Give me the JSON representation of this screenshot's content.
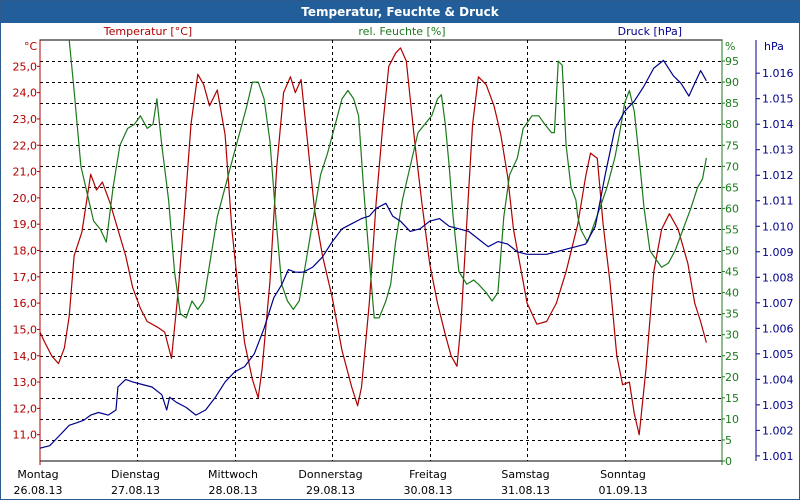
{
  "window": {
    "title": "Temperatur, Feuchte & Druck"
  },
  "colors": {
    "temperature": "#b00000",
    "humidity": "#1c7a1c",
    "pressure": "#00008b",
    "grid": "#000000",
    "titlebar": "#225e99"
  },
  "chart_data": {
    "type": "line",
    "title": "Temperatur, Feuchte & Druck",
    "x_range": [
      0,
      7
    ],
    "x_unit": "days since Montag 26.08.13 00:00",
    "x_labels": [
      {
        "day": "Montag",
        "date": "26.08.13"
      },
      {
        "day": "Dienstag",
        "date": "27.08.13"
      },
      {
        "day": "Mittwoch",
        "date": "28.08.13"
      },
      {
        "day": "Donnerstag",
        "date": "29.08.13"
      },
      {
        "day": "Freitag",
        "date": "30.08.13"
      },
      {
        "day": "Samstag",
        "date": "31.08.13"
      },
      {
        "day": "Sonntag",
        "date": "01.09.13"
      }
    ],
    "axes": {
      "temperature": {
        "label": "Temperatur [°C]",
        "unit": "°C",
        "range": [
          10.0,
          26.0
        ],
        "ticks": [
          "11,0",
          "12,0",
          "13,0",
          "14,0",
          "15,0",
          "16,0",
          "17,0",
          "18,0",
          "19,0",
          "20,0",
          "21,0",
          "22,0",
          "23,0",
          "24,0",
          "25,0"
        ]
      },
      "humidity": {
        "label": "rel. Feuchte [%]",
        "unit": "%",
        "range": [
          0,
          100
        ],
        "ticks": [
          "0",
          "5",
          "10",
          "15",
          "20",
          "25",
          "30",
          "35",
          "40",
          "45",
          "50",
          "55",
          "60",
          "65",
          "70",
          "75",
          "80",
          "85",
          "90",
          "95"
        ]
      },
      "pressure": {
        "label": "Druck [hPa]",
        "unit": "hPa",
        "range": [
          1.0008,
          1.0173
        ],
        "ticks": [
          "1.001",
          "1.002",
          "1.003",
          "1.004",
          "1.005",
          "1.006",
          "1.007",
          "1.008",
          "1.009",
          "1.010",
          "1.011",
          "1.012",
          "1.013",
          "1.014",
          "1.015",
          "1.016"
        ]
      }
    },
    "series": [
      {
        "name": "Temperatur",
        "axis": "temperature",
        "points": [
          [
            0,
            14.9
          ],
          [
            0.05,
            14.5
          ],
          [
            0.12,
            14.0
          ],
          [
            0.19,
            13.7
          ],
          [
            0.25,
            14.3
          ],
          [
            0.3,
            15.5
          ],
          [
            0.35,
            17.8
          ],
          [
            0.43,
            18.7
          ],
          [
            0.52,
            20.9
          ],
          [
            0.58,
            20.3
          ],
          [
            0.64,
            20.6
          ],
          [
            0.72,
            19.8
          ],
          [
            0.8,
            18.8
          ],
          [
            0.88,
            17.8
          ],
          [
            0.95,
            16.6
          ],
          [
            1.03,
            15.8
          ],
          [
            1.1,
            15.3
          ],
          [
            1.2,
            15.1
          ],
          [
            1.28,
            14.9
          ],
          [
            1.35,
            13.9
          ],
          [
            1.42,
            16.5
          ],
          [
            1.48,
            19.3
          ],
          [
            1.55,
            22.8
          ],
          [
            1.62,
            24.7
          ],
          [
            1.68,
            24.3
          ],
          [
            1.74,
            23.5
          ],
          [
            1.82,
            24.1
          ],
          [
            1.9,
            22.4
          ],
          [
            1.97,
            18.8
          ],
          [
            2.04,
            16.3
          ],
          [
            2.1,
            14.5
          ],
          [
            2.18,
            13.1
          ],
          [
            2.24,
            12.4
          ],
          [
            2.28,
            13.5
          ],
          [
            2.36,
            16.8
          ],
          [
            2.43,
            21.2
          ],
          [
            2.5,
            24.0
          ],
          [
            2.57,
            24.6
          ],
          [
            2.62,
            24.0
          ],
          [
            2.68,
            24.5
          ],
          [
            2.75,
            22.0
          ],
          [
            2.82,
            19.5
          ],
          [
            2.9,
            17.8
          ],
          [
            3.0,
            16.2
          ],
          [
            3.1,
            14.2
          ],
          [
            3.2,
            12.8
          ],
          [
            3.26,
            12.1
          ],
          [
            3.3,
            12.8
          ],
          [
            3.38,
            16.0
          ],
          [
            3.45,
            19.8
          ],
          [
            3.52,
            22.8
          ],
          [
            3.58,
            25.0
          ],
          [
            3.65,
            25.5
          ],
          [
            3.7,
            25.7
          ],
          [
            3.76,
            25.2
          ],
          [
            3.85,
            22.0
          ],
          [
            3.92,
            19.8
          ],
          [
            4.0,
            17.5
          ],
          [
            4.08,
            16.0
          ],
          [
            4.16,
            14.8
          ],
          [
            4.22,
            14.0
          ],
          [
            4.28,
            13.6
          ],
          [
            4.32,
            15.2
          ],
          [
            4.38,
            19.0
          ],
          [
            4.44,
            22.8
          ],
          [
            4.5,
            24.6
          ],
          [
            4.58,
            24.3
          ],
          [
            4.66,
            23.5
          ],
          [
            4.73,
            22.4
          ],
          [
            4.8,
            20.8
          ],
          [
            4.86,
            18.8
          ],
          [
            4.94,
            17.2
          ],
          [
            5.0,
            16.0
          ],
          [
            5.1,
            15.2
          ],
          [
            5.2,
            15.3
          ],
          [
            5.3,
            16.0
          ],
          [
            5.4,
            17.2
          ],
          [
            5.52,
            19.0
          ],
          [
            5.6,
            20.8
          ],
          [
            5.65,
            21.7
          ],
          [
            5.72,
            21.5
          ],
          [
            5.78,
            19.0
          ],
          [
            5.85,
            16.8
          ],
          [
            5.92,
            14.0
          ],
          [
            5.98,
            12.9
          ],
          [
            6.05,
            13.0
          ],
          [
            6.1,
            11.8
          ],
          [
            6.15,
            11.0
          ],
          [
            6.22,
            13.5
          ],
          [
            6.3,
            17.2
          ],
          [
            6.38,
            18.8
          ],
          [
            6.46,
            19.4
          ],
          [
            6.55,
            18.8
          ],
          [
            6.65,
            17.5
          ],
          [
            6.72,
            16.0
          ],
          [
            6.78,
            15.3
          ],
          [
            6.84,
            14.5
          ]
        ]
      },
      {
        "name": "rel. Feuchte",
        "axis": "humidity",
        "points": [
          [
            0.3,
            100
          ],
          [
            0.35,
            88
          ],
          [
            0.42,
            70
          ],
          [
            0.5,
            62
          ],
          [
            0.55,
            57
          ],
          [
            0.62,
            55
          ],
          [
            0.68,
            52
          ],
          [
            0.75,
            65
          ],
          [
            0.82,
            75
          ],
          [
            0.9,
            79
          ],
          [
            0.97,
            80
          ],
          [
            1.03,
            82
          ],
          [
            1.1,
            79
          ],
          [
            1.16,
            80
          ],
          [
            1.2,
            86
          ],
          [
            1.25,
            75
          ],
          [
            1.32,
            62
          ],
          [
            1.38,
            45
          ],
          [
            1.44,
            35
          ],
          [
            1.5,
            34
          ],
          [
            1.56,
            38
          ],
          [
            1.62,
            36
          ],
          [
            1.68,
            38
          ],
          [
            1.75,
            48
          ],
          [
            1.82,
            58
          ],
          [
            1.9,
            65
          ],
          [
            1.98,
            72
          ],
          [
            2.05,
            78
          ],
          [
            2.12,
            84
          ],
          [
            2.18,
            90
          ],
          [
            2.24,
            90
          ],
          [
            2.3,
            86
          ],
          [
            2.36,
            76
          ],
          [
            2.42,
            58
          ],
          [
            2.48,
            42
          ],
          [
            2.54,
            38
          ],
          [
            2.6,
            36
          ],
          [
            2.66,
            38
          ],
          [
            2.72,
            46
          ],
          [
            2.8,
            57
          ],
          [
            2.88,
            68
          ],
          [
            2.95,
            73
          ],
          [
            3.02,
            79
          ],
          [
            3.1,
            86
          ],
          [
            3.16,
            88
          ],
          [
            3.22,
            86
          ],
          [
            3.27,
            82
          ],
          [
            3.32,
            65
          ],
          [
            3.38,
            48
          ],
          [
            3.43,
            34
          ],
          [
            3.48,
            34
          ],
          [
            3.55,
            38
          ],
          [
            3.6,
            42
          ],
          [
            3.65,
            52
          ],
          [
            3.72,
            62
          ],
          [
            3.8,
            70
          ],
          [
            3.88,
            78
          ],
          [
            3.95,
            80
          ],
          [
            4.02,
            82
          ],
          [
            4.08,
            86
          ],
          [
            4.12,
            87
          ],
          [
            4.16,
            80
          ],
          [
            4.2,
            70
          ],
          [
            4.24,
            58
          ],
          [
            4.3,
            45
          ],
          [
            4.38,
            42
          ],
          [
            4.45,
            43
          ],
          [
            4.5,
            42
          ],
          [
            4.58,
            40
          ],
          [
            4.64,
            38
          ],
          [
            4.7,
            40
          ],
          [
            4.76,
            58
          ],
          [
            4.82,
            68
          ],
          [
            4.9,
            72
          ],
          [
            4.96,
            79
          ],
          [
            5.05,
            82
          ],
          [
            5.12,
            82
          ],
          [
            5.18,
            80
          ],
          [
            5.25,
            78
          ],
          [
            5.28,
            78
          ],
          [
            5.32,
            95
          ],
          [
            5.36,
            94
          ],
          [
            5.4,
            75
          ],
          [
            5.45,
            65
          ],
          [
            5.5,
            62
          ],
          [
            5.52,
            58
          ],
          [
            5.55,
            55
          ],
          [
            5.62,
            52
          ],
          [
            5.7,
            57
          ],
          [
            5.76,
            61
          ],
          [
            5.82,
            65
          ],
          [
            5.9,
            72
          ],
          [
            5.95,
            78
          ],
          [
            6.0,
            85
          ],
          [
            6.05,
            88
          ],
          [
            6.1,
            83
          ],
          [
            6.15,
            72
          ],
          [
            6.2,
            60
          ],
          [
            6.26,
            50
          ],
          [
            6.32,
            48
          ],
          [
            6.38,
            46
          ],
          [
            6.45,
            47
          ],
          [
            6.52,
            50
          ],
          [
            6.6,
            55
          ],
          [
            6.68,
            60
          ],
          [
            6.75,
            65
          ],
          [
            6.8,
            67
          ],
          [
            6.84,
            72
          ]
        ]
      },
      {
        "name": "Druck",
        "axis": "pressure",
        "points": [
          [
            0,
            1.0013
          ],
          [
            0.1,
            1.0014
          ],
          [
            0.2,
            1.0018
          ],
          [
            0.3,
            1.0022
          ],
          [
            0.38,
            1.0023
          ],
          [
            0.45,
            1.0024
          ],
          [
            0.52,
            1.0026
          ],
          [
            0.6,
            1.0027
          ],
          [
            0.7,
            1.0026
          ],
          [
            0.78,
            1.0028
          ],
          [
            0.8,
            1.0037
          ],
          [
            0.88,
            1.004
          ],
          [
            0.95,
            1.0039
          ],
          [
            1.05,
            1.0038
          ],
          [
            1.15,
            1.0037
          ],
          [
            1.25,
            1.0034
          ],
          [
            1.3,
            1.0028
          ],
          [
            1.33,
            1.0033
          ],
          [
            1.4,
            1.0031
          ],
          [
            1.5,
            1.0029
          ],
          [
            1.6,
            1.0026
          ],
          [
            1.7,
            1.0028
          ],
          [
            1.8,
            1.0033
          ],
          [
            1.9,
            1.0039
          ],
          [
            2.0,
            1.0043
          ],
          [
            2.1,
            1.0045
          ],
          [
            2.2,
            1.005
          ],
          [
            2.3,
            1.006
          ],
          [
            2.4,
            1.0072
          ],
          [
            2.48,
            1.0077
          ],
          [
            2.55,
            1.0083
          ],
          [
            2.62,
            1.0082
          ],
          [
            2.7,
            1.0082
          ],
          [
            2.8,
            1.0084
          ],
          [
            2.9,
            1.0088
          ],
          [
            3.0,
            1.0094
          ],
          [
            3.1,
            1.0099
          ],
          [
            3.2,
            1.0101
          ],
          [
            3.3,
            1.0103
          ],
          [
            3.38,
            1.0104
          ],
          [
            3.45,
            1.0107
          ],
          [
            3.55,
            1.0109
          ],
          [
            3.62,
            1.0104
          ],
          [
            3.7,
            1.0102
          ],
          [
            3.8,
            1.0098
          ],
          [
            3.9,
            1.0099
          ],
          [
            4.0,
            1.0102
          ],
          [
            4.1,
            1.0103
          ],
          [
            4.2,
            1.01
          ],
          [
            4.3,
            1.0099
          ],
          [
            4.4,
            1.0098
          ],
          [
            4.5,
            1.0095
          ],
          [
            4.6,
            1.0092
          ],
          [
            4.7,
            1.0094
          ],
          [
            4.8,
            1.0093
          ],
          [
            4.9,
            1.009
          ],
          [
            5.0,
            1.0089
          ],
          [
            5.1,
            1.0089
          ],
          [
            5.2,
            1.0089
          ],
          [
            5.3,
            1.009
          ],
          [
            5.4,
            1.0091
          ],
          [
            5.5,
            1.0092
          ],
          [
            5.6,
            1.0093
          ],
          [
            5.7,
            1.01
          ],
          [
            5.8,
            1.012
          ],
          [
            5.9,
            1.0138
          ],
          [
            6.0,
            1.0145
          ],
          [
            6.1,
            1.0149
          ],
          [
            6.2,
            1.0155
          ],
          [
            6.3,
            1.0162
          ],
          [
            6.4,
            1.0165
          ],
          [
            6.5,
            1.0159
          ],
          [
            6.58,
            1.0156
          ],
          [
            6.66,
            1.0151
          ],
          [
            6.72,
            1.0156
          ],
          [
            6.78,
            1.0161
          ],
          [
            6.84,
            1.0157
          ]
        ]
      }
    ]
  }
}
